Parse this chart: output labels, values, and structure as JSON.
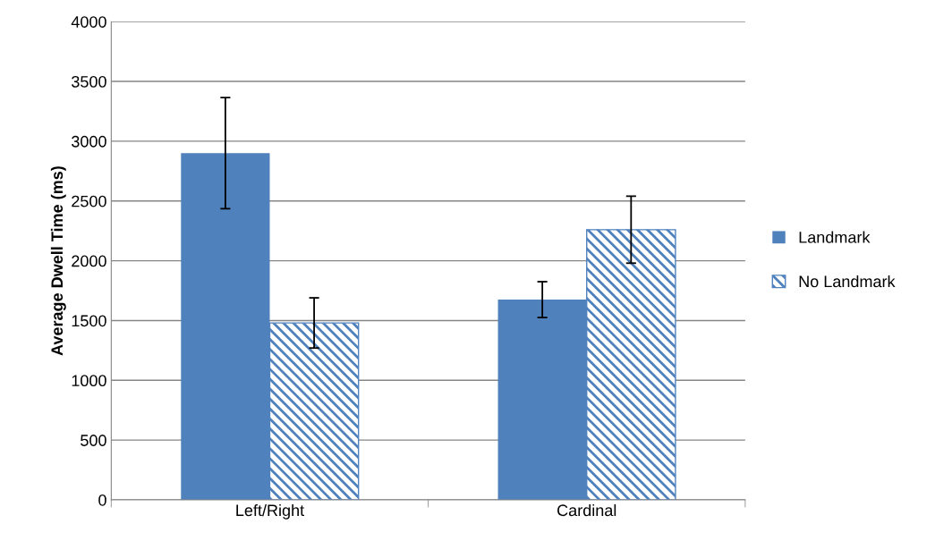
{
  "chart_data": {
    "type": "bar",
    "ylabel": "Average Dwell Time (ms)",
    "categories": [
      "Left/Right",
      "Cardinal"
    ],
    "series": [
      {
        "name": "Landmark",
        "color": "#4f81bd",
        "values": [
          2900,
          1675
        ],
        "errors": [
          465,
          150
        ]
      },
      {
        "name": "No Landmark",
        "color": "#4f81bd",
        "values": [
          1480,
          2260
        ],
        "errors": [
          210,
          280
        ]
      }
    ],
    "ylim": [
      0,
      4000
    ],
    "yticks": [
      0,
      500,
      1000,
      1500,
      2000,
      2500,
      3000,
      3500,
      4000
    ],
    "grid": "y",
    "legend": "right"
  }
}
